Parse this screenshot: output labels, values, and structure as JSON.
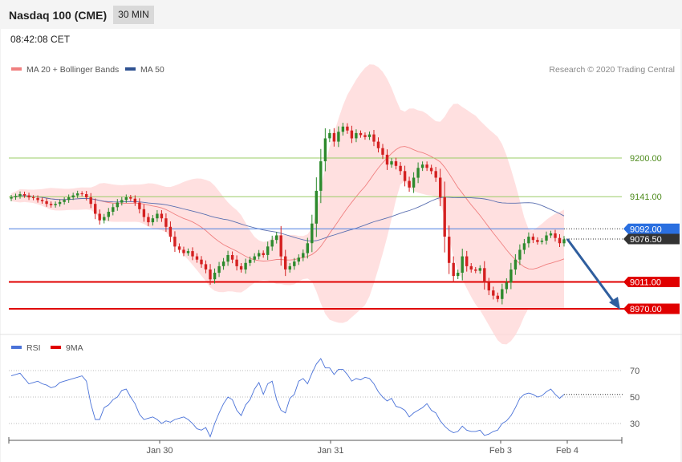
{
  "header": {
    "title": "Nasdaq 100 (CME)",
    "timeframe": "30 MIN",
    "time": "08:42:08 CET"
  },
  "legend": {
    "ma20": "MA 20 + Bollinger Bands",
    "ma50": "MA 50",
    "credit": "Research © 2020 Trading Central"
  },
  "rsi_legend": {
    "rsi": "RSI",
    "ma9": "9MA"
  },
  "colors": {
    "bull": "#2d8a2d",
    "bear": "#d42020",
    "band": "#ffd6d6",
    "ma20": "#f08080",
    "ma50": "#5a6fb0",
    "support": "#e00000",
    "pivot": "#4a7fe0",
    "green_level": "#9acc66",
    "arrow": "#2f5e9e"
  },
  "chart_data": [
    {
      "type": "candlestick",
      "title": "Nasdaq 100 (CME)",
      "ylim": [
        8950,
        9300
      ],
      "x_ticks": [
        "Jan 30",
        "Jan 31",
        "Feb 3",
        "Feb 4"
      ],
      "levels": [
        {
          "label": "9200.00",
          "value": 9200,
          "kind": "resistance"
        },
        {
          "label": "9141.00",
          "value": 9141,
          "kind": "resistance"
        },
        {
          "label": "9092.00",
          "value": 9092,
          "kind": "pivot"
        },
        {
          "label": "9076.50",
          "value": 9076.5,
          "kind": "last"
        },
        {
          "label": "9011.00",
          "value": 9011,
          "kind": "support"
        },
        {
          "label": "8970.00",
          "value": 8970,
          "kind": "support"
        }
      ],
      "closes": [
        9140,
        9142,
        9145,
        9143,
        9140,
        9139,
        9136,
        9134,
        9130,
        9128,
        9130,
        9133,
        9136,
        9140,
        9143,
        9146,
        9145,
        9140,
        9130,
        9115,
        9105,
        9110,
        9118,
        9125,
        9132,
        9136,
        9140,
        9138,
        9132,
        9122,
        9110,
        9102,
        9108,
        9115,
        9108,
        9095,
        9080,
        9065,
        9060,
        9055,
        9058,
        9050,
        9045,
        9038,
        9030,
        9015,
        9025,
        9035,
        9042,
        9052,
        9045,
        9035,
        9030,
        9040,
        9045,
        9050,
        9055,
        9052,
        9065,
        9075,
        9082,
        9050,
        9030,
        9035,
        9042,
        9048,
        9055,
        9070,
        9100,
        9150,
        9195,
        9230,
        9238,
        9225,
        9240,
        9248,
        9242,
        9230,
        9238,
        9235,
        9232,
        9236,
        9225,
        9215,
        9205,
        9190,
        9195,
        9188,
        9180,
        9165,
        9155,
        9170,
        9185,
        9190,
        9185,
        9180,
        9170,
        9140,
        9080,
        9040,
        9020,
        9025,
        9050,
        9035,
        9030,
        9028,
        9032,
        9010,
        8998,
        8990,
        8985,
        9000,
        9010,
        9030,
        9045,
        9060,
        9070,
        9080,
        9075,
        9072,
        9074,
        9082,
        9085,
        9078,
        9070,
        9076
      ]
    },
    {
      "type": "line",
      "title": "RSI",
      "ylim": [
        20,
        80
      ],
      "y_ticks": [
        30,
        50,
        70
      ],
      "series": [
        {
          "name": "RSI",
          "values": [
            66,
            67,
            68,
            64,
            60,
            61,
            62,
            60,
            59,
            57,
            58,
            61,
            62,
            63,
            64,
            65,
            66,
            62,
            45,
            33,
            33,
            42,
            44,
            48,
            50,
            55,
            56,
            50,
            45,
            37,
            33,
            34,
            35,
            33,
            30,
            32,
            31,
            33,
            34,
            35,
            33,
            30,
            26,
            25,
            27,
            20,
            30,
            38,
            45,
            50,
            48,
            40,
            36,
            44,
            48,
            56,
            61,
            52,
            60,
            62,
            48,
            40,
            38,
            49,
            52,
            62,
            64,
            60,
            68,
            75,
            79,
            72,
            72,
            67,
            71,
            71,
            67,
            62,
            64,
            63,
            65,
            64,
            60,
            54,
            50,
            47,
            49,
            43,
            42,
            40,
            35,
            38,
            40,
            42,
            45,
            40,
            38,
            32,
            28,
            25,
            23,
            24,
            28,
            25,
            24,
            24,
            25,
            21,
            22,
            24,
            25,
            30,
            32,
            36,
            42,
            49,
            52,
            53,
            52,
            50,
            51,
            54,
            56,
            52,
            49,
            52
          ]
        }
      ]
    }
  ]
}
